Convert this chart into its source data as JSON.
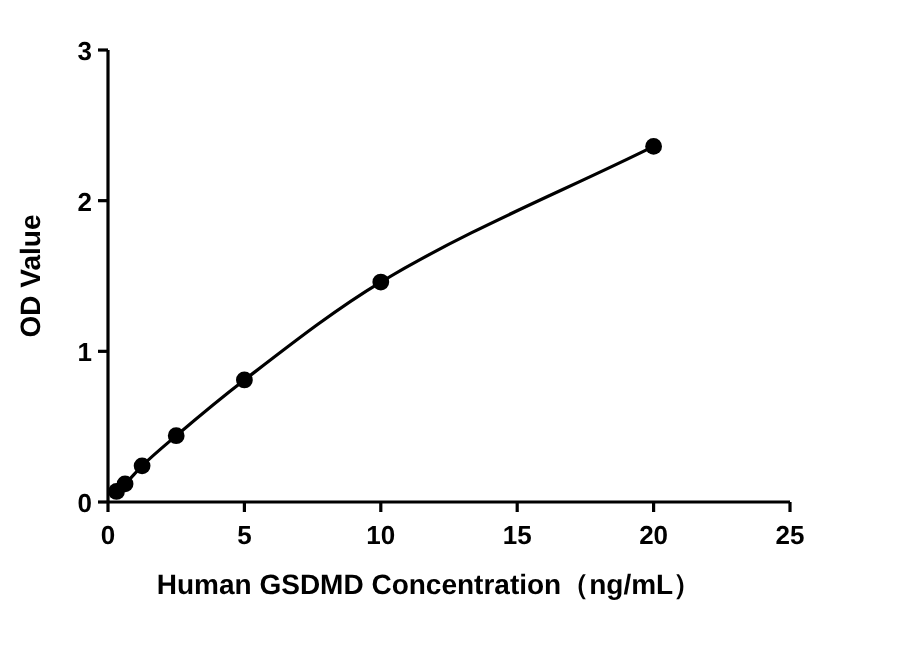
{
  "chart_data": {
    "type": "line",
    "xlabel": "Human GSDMD Concentration（ng/mL）",
    "ylabel": "OD Value",
    "series": [
      {
        "color": "#000000",
        "x": [
          0.3125,
          0.625,
          1.25,
          2.5,
          5,
          10,
          20
        ],
        "values": [
          0.07,
          0.12,
          0.24,
          0.44,
          0.81,
          1.46,
          2.36
        ]
      }
    ],
    "xlim": [
      0,
      25
    ],
    "ylim": [
      0,
      3
    ],
    "xticks": [
      0,
      5,
      10,
      15,
      20,
      25
    ],
    "yticks": [
      0,
      1,
      2,
      3
    ],
    "marker": "circle",
    "line_style": "solid"
  }
}
